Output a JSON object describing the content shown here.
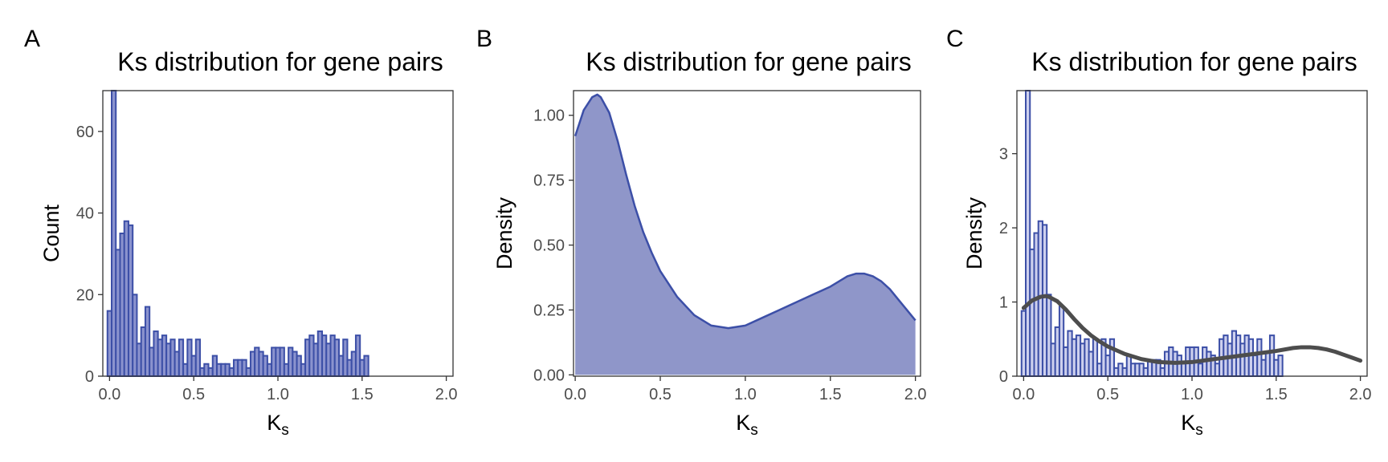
{
  "chart_data": [
    {
      "panel": "A",
      "type": "bar",
      "title": "Ks distribution for gene pairs",
      "xlabel": "K",
      "xlabel_sub": "s",
      "ylabel": "Count",
      "xlim": [
        -0.04,
        2.04
      ],
      "ylim": [
        0,
        70
      ],
      "xticks": [
        0,
        0.5,
        1,
        1.5,
        2
      ],
      "xtick_labels": [
        "0.0",
        "0.5",
        "1.0",
        "1.5",
        "2.0"
      ],
      "yticks": [
        0,
        20,
        40,
        60
      ],
      "ytick_labels": [
        "0",
        "20",
        "40",
        "60"
      ],
      "bin_start": -0.0125,
      "bin_width": 0.025,
      "values": [
        16,
        70,
        31,
        35,
        38,
        37,
        20,
        8,
        12,
        17,
        7,
        11,
        9,
        10,
        8,
        9,
        6,
        9,
        3,
        9,
        5,
        9,
        2,
        3,
        2,
        5,
        3,
        3,
        3,
        2,
        4,
        4,
        4,
        2,
        6,
        7,
        6,
        5,
        3,
        7,
        7,
        7,
        3,
        7,
        6,
        5,
        3,
        9,
        10,
        8,
        11,
        10,
        8,
        10,
        9,
        5,
        9,
        4,
        6,
        10,
        4,
        5
      ],
      "colors": {
        "fill": "#8b93ce",
        "stroke": "#3c4fa7"
      },
      "grid": false
    },
    {
      "panel": "B",
      "type": "area",
      "title": "Ks distribution for gene pairs",
      "xlabel": "K",
      "xlabel_sub": "s",
      "ylabel": "Density",
      "xlim": [
        -0.01,
        2.03
      ],
      "ylim": [
        -0.005,
        1.095
      ],
      "xticks": [
        0,
        0.5,
        1,
        1.5,
        2
      ],
      "xtick_labels": [
        "0.0",
        "0.5",
        "1.0",
        "1.5",
        "2.0"
      ],
      "yticks": [
        0,
        0.25,
        0.5,
        0.75,
        1
      ],
      "ytick_labels": [
        "0.00",
        "0.25",
        "0.50",
        "0.75",
        "1.00"
      ],
      "x": [
        0,
        0.05,
        0.1,
        0.13,
        0.15,
        0.2,
        0.25,
        0.3,
        0.35,
        0.4,
        0.45,
        0.5,
        0.6,
        0.7,
        0.8,
        0.9,
        1.0,
        1.1,
        1.2,
        1.3,
        1.4,
        1.5,
        1.6,
        1.65,
        1.7,
        1.75,
        1.8,
        1.85,
        1.9,
        1.95,
        2.0
      ],
      "y": [
        0.92,
        1.02,
        1.07,
        1.08,
        1.07,
        1.01,
        0.9,
        0.77,
        0.65,
        0.55,
        0.47,
        0.4,
        0.3,
        0.23,
        0.19,
        0.18,
        0.19,
        0.22,
        0.25,
        0.28,
        0.31,
        0.34,
        0.38,
        0.39,
        0.39,
        0.38,
        0.36,
        0.33,
        0.29,
        0.25,
        0.21
      ],
      "colors": {
        "fill": "#8f96c9",
        "stroke": "#3c4fa7"
      },
      "grid": false
    },
    {
      "panel": "C",
      "type": "bar",
      "title": "Ks distribution for gene pairs",
      "xlabel": "K",
      "xlabel_sub": "s",
      "ylabel": "Density",
      "xlim": [
        -0.04,
        2.04
      ],
      "ylim": [
        0,
        3.85
      ],
      "xticks": [
        0,
        0.5,
        1,
        1.5,
        2
      ],
      "xtick_labels": [
        "0.0",
        "0.5",
        "1.0",
        "1.5",
        "2.0"
      ],
      "yticks": [
        0,
        1,
        2,
        3
      ],
      "ytick_labels": [
        "0",
        "1",
        "2",
        "3"
      ],
      "bin_start": -0.0125,
      "bin_width": 0.025,
      "values": [
        0.88,
        3.85,
        1.71,
        1.93,
        2.09,
        2.04,
        1.1,
        0.44,
        0.66,
        0.94,
        0.39,
        0.61,
        0.5,
        0.55,
        0.44,
        0.5,
        0.33,
        0.5,
        0.17,
        0.5,
        0.28,
        0.5,
        0.11,
        0.17,
        0.11,
        0.28,
        0.17,
        0.17,
        0.17,
        0.11,
        0.22,
        0.22,
        0.22,
        0.11,
        0.33,
        0.39,
        0.33,
        0.28,
        0.17,
        0.39,
        0.39,
        0.39,
        0.17,
        0.39,
        0.33,
        0.28,
        0.17,
        0.5,
        0.55,
        0.44,
        0.61,
        0.55,
        0.44,
        0.55,
        0.5,
        0.28,
        0.5,
        0.22,
        0.33,
        0.55,
        0.22,
        0.28
      ],
      "overlay_line": {
        "x": [
          0,
          0.05,
          0.1,
          0.13,
          0.15,
          0.2,
          0.25,
          0.3,
          0.35,
          0.4,
          0.45,
          0.5,
          0.6,
          0.7,
          0.8,
          0.9,
          1.0,
          1.1,
          1.2,
          1.3,
          1.4,
          1.5,
          1.6,
          1.65,
          1.7,
          1.75,
          1.8,
          1.85,
          1.9,
          1.95,
          2.0
        ],
        "y": [
          0.92,
          1.02,
          1.07,
          1.08,
          1.07,
          1.01,
          0.9,
          0.77,
          0.65,
          0.55,
          0.47,
          0.4,
          0.3,
          0.23,
          0.19,
          0.18,
          0.19,
          0.22,
          0.25,
          0.28,
          0.31,
          0.34,
          0.38,
          0.39,
          0.39,
          0.38,
          0.36,
          0.33,
          0.29,
          0.25,
          0.21
        ]
      },
      "colors": {
        "fill": "#cdd0ee",
        "stroke": "#3c4fa7",
        "line": "#4d4d4d"
      },
      "grid": false
    }
  ]
}
